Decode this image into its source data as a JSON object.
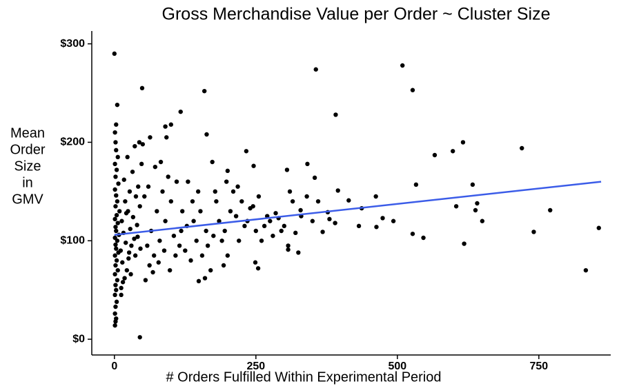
{
  "chart_data": {
    "type": "scatter",
    "title": "Gross Merchandise Value per Order ~ Cluster Size",
    "xlabel": "# Orders Fulfilled Within Experimental Period",
    "ylabel": [
      "Mean",
      "Order",
      "Size",
      "in",
      "GMV"
    ],
    "color": "#000000",
    "xlim": [
      -40,
      877
    ],
    "ylim": [
      -16,
      313
    ],
    "xticks": [
      0,
      250,
      500,
      750
    ],
    "yticks": [
      {
        "value": 0,
        "label": "$0"
      },
      {
        "value": 100,
        "label": "$100"
      },
      {
        "value": 200,
        "label": "$200"
      },
      {
        "value": 300,
        "label": "$300"
      }
    ],
    "grid": false,
    "x": [
      0,
      5,
      49,
      159,
      356,
      509,
      527,
      391,
      163,
      117,
      100,
      90,
      233,
      305,
      341,
      246,
      200,
      173,
      566,
      598,
      616,
      720,
      533,
      633,
      641,
      604,
      638,
      650,
      770,
      741,
      462,
      414,
      395,
      354,
      329,
      432,
      437,
      463,
      474,
      493,
      527,
      546,
      618,
      833,
      856,
      377,
      368,
      307,
      307,
      254,
      249,
      193,
      149,
      45,
      1,
      2,
      3,
      1,
      2,
      4,
      1,
      3,
      2,
      5,
      1,
      6,
      2,
      4,
      1,
      7,
      3,
      2,
      5,
      1,
      8,
      3,
      2,
      6,
      1,
      4,
      9,
      2,
      5,
      3,
      1,
      7,
      2,
      4,
      1,
      6,
      3,
      2,
      1,
      3,
      12,
      15,
      18,
      22,
      14,
      25,
      11,
      30,
      20,
      35,
      16,
      28,
      40,
      13,
      33,
      24,
      45,
      19,
      38,
      27,
      42,
      17,
      32,
      48,
      23,
      36,
      44,
      12,
      26,
      46,
      37,
      21,
      41,
      29,
      50,
      55,
      62,
      70,
      58,
      80,
      65,
      90,
      75,
      100,
      85,
      60,
      110,
      95,
      72,
      130,
      120,
      140,
      105,
      115,
      125,
      135,
      145,
      88,
      68,
      78,
      98,
      108,
      118,
      128,
      138,
      148,
      82,
      92,
      63,
      53,
      155,
      165,
      175,
      185,
      195,
      205,
      215,
      225,
      235,
      245,
      255,
      265,
      275,
      285,
      295,
      160,
      170,
      180,
      190,
      200,
      210,
      220,
      230,
      240,
      250,
      260,
      270,
      280,
      290,
      300,
      178,
      198,
      218,
      152,
      162,
      310,
      320,
      330,
      340,
      350,
      360,
      380,
      390,
      315,
      325
    ],
    "values": [
      290,
      238,
      255,
      252,
      274,
      278,
      253,
      228,
      208,
      231,
      218,
      216,
      191,
      172,
      178,
      176,
      171,
      180,
      187,
      191,
      200,
      194,
      157,
      157,
      138,
      135,
      131,
      120,
      131,
      109,
      145,
      141,
      151,
      164,
      131,
      115,
      133,
      114,
      123,
      120,
      107,
      103,
      97,
      70,
      113,
      129,
      109,
      95,
      91,
      72,
      78,
      75,
      59,
      2,
      14,
      18,
      21,
      26,
      33,
      38,
      45,
      50,
      55,
      60,
      66,
      70,
      75,
      80,
      85,
      88,
      92,
      96,
      100,
      103,
      106,
      110,
      114,
      118,
      122,
      126,
      130,
      135,
      140,
      146,
      152,
      158,
      165,
      172,
      178,
      185,
      192,
      200,
      210,
      218,
      45,
      58,
      62,
      70,
      78,
      82,
      90,
      95,
      98,
      102,
      108,
      112,
      116,
      120,
      124,
      130,
      135,
      140,
      145,
      150,
      155,
      162,
      170,
      178,
      185,
      196,
      200,
      52,
      88,
      92,
      85,
      128,
      104,
      66,
      198,
      60,
      75,
      85,
      95,
      100,
      110,
      120,
      130,
      140,
      150,
      155,
      160,
      165,
      175,
      160,
      130,
      120,
      105,
      95,
      90,
      80,
      100,
      90,
      68,
      78,
      70,
      85,
      110,
      115,
      140,
      150,
      180,
      205,
      205,
      145,
      85,
      95,
      105,
      120,
      110,
      130,
      125,
      140,
      120,
      135,
      145,
      115,
      120,
      128,
      110,
      62,
      70,
      140,
      100,
      85,
      150,
      100,
      115,
      133,
      110,
      100,
      125,
      105,
      123,
      115,
      150,
      160,
      155,
      130,
      110,
      150,
      108,
      125,
      145,
      120,
      140,
      122,
      118,
      140,
      88
    ],
    "trend": {
      "color": "#3b5ce8",
      "x": [
        0,
        860
      ],
      "y": [
        106,
        160
      ]
    }
  }
}
